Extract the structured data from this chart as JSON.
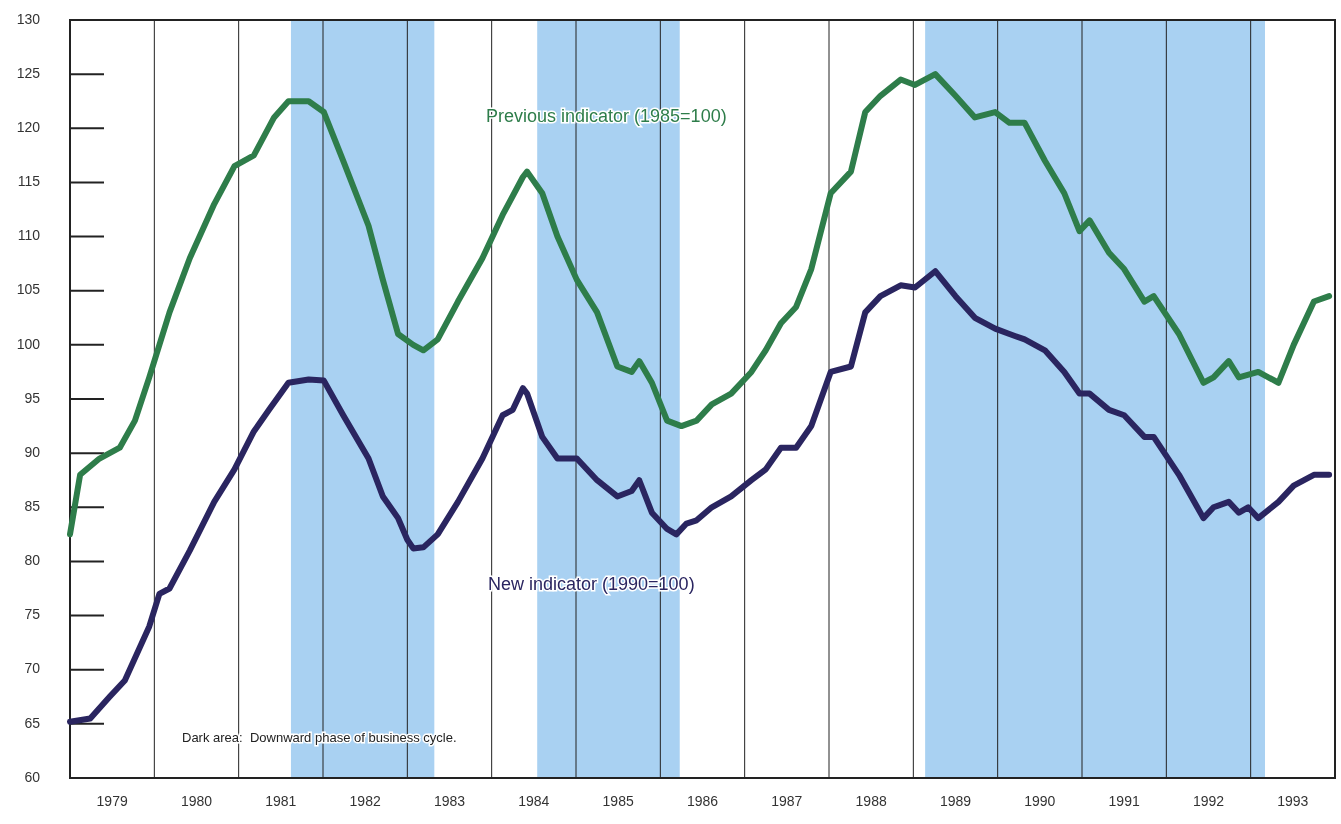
{
  "chart_data": {
    "type": "line",
    "xlim": [
      1979,
      1994
    ],
    "ylim": [
      60,
      130
    ],
    "xticks": [
      {
        "value": 1979.5,
        "label": "1979"
      },
      {
        "value": 1980,
        "label": null
      },
      {
        "value": 1980.5,
        "label": "1980"
      },
      {
        "value": 1981,
        "label": null
      },
      {
        "value": 1981.5,
        "label": "1981"
      },
      {
        "value": 1982,
        "label": null
      },
      {
        "value": 1982.5,
        "label": "1982"
      },
      {
        "value": 1983,
        "label": null
      },
      {
        "value": 1983.5,
        "label": "1983"
      },
      {
        "value": 1984,
        "label": null
      },
      {
        "value": 1984.5,
        "label": "1984"
      },
      {
        "value": 1985,
        "label": null
      },
      {
        "value": 1985.5,
        "label": "1985"
      },
      {
        "value": 1986,
        "label": null
      },
      {
        "value": 1986.5,
        "label": "1986"
      },
      {
        "value": 1987,
        "label": null
      },
      {
        "value": 1987.5,
        "label": "1987"
      },
      {
        "value": 1988,
        "label": null
      },
      {
        "value": 1988.5,
        "label": "1988"
      },
      {
        "value": 1989,
        "label": null
      },
      {
        "value": 1989.5,
        "label": "1989"
      },
      {
        "value": 1990,
        "label": null
      },
      {
        "value": 1990.5,
        "label": "1990"
      },
      {
        "value": 1991,
        "label": null
      },
      {
        "value": 1991.5,
        "label": "1991"
      },
      {
        "value": 1992,
        "label": null
      },
      {
        "value": 1992.5,
        "label": "1992"
      },
      {
        "value": 1993,
        "label": null
      },
      {
        "value": 1993.5,
        "label": "1993"
      }
    ],
    "yticks": [
      60,
      65,
      70,
      75,
      80,
      85,
      90,
      95,
      100,
      105,
      110,
      115,
      120,
      125,
      130
    ],
    "grid": "x",
    "legend": false,
    "marker": "none",
    "line_style": "solid",
    "bands": [
      {
        "axis": "x",
        "from": 1981.62,
        "to": 1983.32,
        "color": "#a9d1f2"
      },
      {
        "axis": "x",
        "from": 1984.54,
        "to": 1986.23,
        "color": "#a9d1f2"
      },
      {
        "axis": "x",
        "from": 1989.14,
        "to": 1993.17,
        "color": "#a9d1f2"
      }
    ],
    "annotations": [
      "Dark area:  Downward phase of business cycle."
    ],
    "series": [
      {
        "name": "Previous indicator (1985=100)",
        "color": "#2e7d4a",
        "x": [
          1979.0,
          1979.12,
          1979.35,
          1979.59,
          1979.77,
          1979.94,
          1980.18,
          1980.42,
          1980.71,
          1980.95,
          1981.18,
          1981.42,
          1981.59,
          1981.83,
          1982.01,
          1982.24,
          1982.54,
          1982.71,
          1982.89,
          1983.07,
          1983.19,
          1983.36,
          1983.6,
          1983.89,
          1984.13,
          1984.37,
          1984.42,
          1984.6,
          1984.78,
          1985.01,
          1985.25,
          1985.49,
          1985.66,
          1985.75,
          1985.9,
          1986.08,
          1986.25,
          1986.43,
          1986.61,
          1986.84,
          1987.08,
          1987.25,
          1987.43,
          1987.61,
          1987.79,
          1988.02,
          1988.26,
          1988.43,
          1988.61,
          1988.85,
          1989.02,
          1989.26,
          1989.5,
          1989.73,
          1989.97,
          1990.14,
          1990.32,
          1990.56,
          1990.79,
          1990.97,
          1991.09,
          1991.32,
          1991.5,
          1991.74,
          1991.85,
          1992.15,
          1992.44,
          1992.56,
          1992.74,
          1992.86,
          1993.09,
          1993.33,
          1993.51,
          1993.75,
          1993.93
        ],
        "values": [
          82.5,
          88,
          89.5,
          90.5,
          93,
          97,
          103,
          108,
          113,
          116.5,
          117.5,
          121,
          122.5,
          122.5,
          121.5,
          117,
          111,
          106,
          101,
          100,
          99.5,
          100.5,
          104,
          108,
          112,
          115.5,
          116,
          114,
          110,
          106,
          103,
          98,
          97.5,
          98.5,
          96.5,
          93,
          92.5,
          93,
          94.5,
          95.5,
          97.5,
          99.5,
          102,
          103.5,
          107,
          114,
          116,
          121.5,
          123,
          124.5,
          124,
          125,
          123,
          121,
          121.5,
          120.5,
          120.5,
          117,
          114,
          110.5,
          111.5,
          108.5,
          107,
          104,
          104.5,
          101,
          96.5,
          97,
          98.5,
          97,
          97.5,
          96.5,
          100,
          104,
          104.5
        ]
      },
      {
        "name": "New indicator (1990=100)",
        "color": "#2a2560",
        "x": [
          1979.0,
          1979.24,
          1979.47,
          1979.65,
          1979.94,
          1980.06,
          1980.18,
          1980.42,
          1980.71,
          1980.95,
          1981.18,
          1981.36,
          1981.59,
          1981.83,
          1982.01,
          1982.24,
          1982.54,
          1982.71,
          1982.89,
          1983.0,
          1983.07,
          1983.19,
          1983.36,
          1983.6,
          1983.89,
          1984.13,
          1984.25,
          1984.37,
          1984.42,
          1984.6,
          1984.78,
          1985.01,
          1985.25,
          1985.49,
          1985.66,
          1985.75,
          1985.9,
          1986.08,
          1986.19,
          1986.31,
          1986.43,
          1986.61,
          1986.84,
          1987.08,
          1987.25,
          1987.43,
          1987.61,
          1987.79,
          1988.02,
          1988.26,
          1988.43,
          1988.61,
          1988.85,
          1989.02,
          1989.26,
          1989.5,
          1989.73,
          1989.97,
          1990.14,
          1990.32,
          1990.56,
          1990.79,
          1990.97,
          1991.09,
          1991.32,
          1991.5,
          1991.74,
          1991.85,
          1992.15,
          1992.44,
          1992.56,
          1992.74,
          1992.86,
          1992.97,
          1993.09,
          1993.33,
          1993.51,
          1993.75,
          1993.93
        ],
        "values": [
          65.2,
          65.5,
          67.5,
          69,
          74,
          77,
          77.5,
          81,
          85.5,
          88.5,
          92,
          94,
          96.5,
          96.8,
          96.7,
          93.5,
          89.5,
          86,
          84,
          82,
          81.2,
          81.3,
          82.5,
          85.5,
          89.5,
          93.5,
          94,
          96,
          95.5,
          91.5,
          89.5,
          89.5,
          87.5,
          86,
          86.5,
          87.5,
          84.5,
          83,
          82.5,
          83.5,
          83.8,
          85,
          86,
          87.5,
          88.5,
          90.5,
          90.5,
          92.5,
          97.5,
          98,
          103,
          104.5,
          105.5,
          105.3,
          106.8,
          104.5,
          102.5,
          101.5,
          101,
          100.5,
          99.5,
          97.5,
          95.5,
          95.5,
          94,
          93.5,
          91.5,
          91.5,
          88,
          84,
          85,
          85.5,
          84.5,
          85,
          84,
          85.5,
          87,
          88,
          88
        ]
      }
    ]
  }
}
